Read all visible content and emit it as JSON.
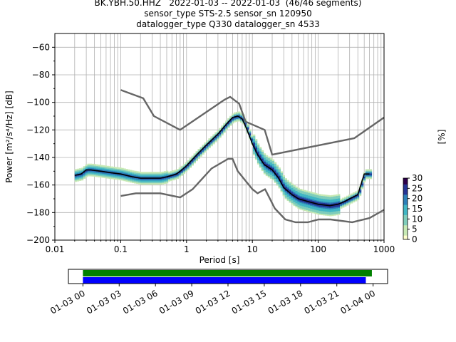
{
  "header": {
    "line1": "BK.YBH.50.HHZ   2022-01-03 -- 2022-01-03  (46/46 segments)",
    "line2": "sensor_type STS-2.5 sensor_sn 120950",
    "line3": "datalogger_type Q330 datalogger_sn 4533"
  },
  "chart_data": [
    {
      "type": "heatmap",
      "title": "",
      "xlabel": "Period [s]",
      "ylabel": "Power [m²/s⁴/Hz] [dB]",
      "xscale": "log",
      "xlim": [
        0.01,
        1000
      ],
      "ylim": [
        -200,
        -50
      ],
      "x_ticks": [
        0.01,
        0.1,
        1,
        10,
        100,
        1000
      ],
      "x_tick_labels": [
        "0.01",
        "0.1",
        "1",
        "10",
        "100",
        "1000"
      ],
      "y_ticks": [
        -200,
        -180,
        -160,
        -140,
        -120,
        -100,
        -80,
        -60
      ],
      "y_tick_labels": [
        "−200",
        "−180",
        "−160",
        "−140",
        "−120",
        "−100",
        "−80",
        "−60"
      ],
      "grid": true,
      "colorbar": {
        "label": "[%]",
        "range": [
          0,
          30
        ],
        "ticks": [
          0,
          5,
          10,
          15,
          20,
          25,
          30
        ],
        "tick_labels": [
          "0",
          "5",
          "10",
          "15",
          "20",
          "25",
          "30"
        ],
        "colors": [
          "#ffffcc",
          "#c7e9b4",
          "#7fcdbb",
          "#41b6c4",
          "#2c7fb8",
          "#253494",
          "#2d004b"
        ]
      },
      "series": [
        {
          "role": "mode",
          "color": "#000000",
          "x": [
            0.02,
            0.025,
            0.03,
            0.035,
            0.05,
            0.07,
            0.1,
            0.15,
            0.2,
            0.3,
            0.4,
            0.5,
            0.6,
            0.7,
            0.8,
            1,
            1.5,
            2,
            3,
            4,
            5,
            6,
            7,
            8,
            10,
            12,
            15,
            20,
            25,
            30,
            40,
            50,
            70,
            100,
            150,
            200,
            250,
            300,
            400,
            500,
            600
          ],
          "y": [
            -153,
            -152,
            -149,
            -149,
            -150,
            -151,
            -152,
            -154,
            -155,
            -155,
            -155,
            -154,
            -153,
            -152,
            -150,
            -146,
            -137,
            -131,
            -123,
            -116,
            -111,
            -110,
            -112,
            -118,
            -130,
            -138,
            -145,
            -149,
            -155,
            -162,
            -167,
            -170,
            -172,
            -174,
            -175,
            -174,
            -172,
            -170,
            -167,
            -152,
            -152
          ]
        },
        {
          "role": "high-noise-model",
          "color": "#666666",
          "x": [
            0.1,
            0.22,
            0.32,
            0.8,
            3.8,
            4.6,
            6.3,
            7.9,
            15.4,
            20,
            354.8,
            1000
          ],
          "y": [
            -91,
            -97,
            -110,
            -120,
            -98,
            -96,
            -101,
            -114,
            -120,
            -138,
            -126,
            -111
          ]
        },
        {
          "role": "low-noise-model",
          "color": "#666666",
          "x": [
            0.1,
            0.17,
            0.4,
            0.8,
            1.24,
            2.4,
            4.3,
            5,
            6,
            10,
            12,
            15.6,
            21.9,
            31.6,
            45,
            70,
            101,
            154,
            328,
            600,
            1000
          ],
          "y": [
            -168,
            -166,
            -166,
            -169,
            -163,
            -148,
            -141,
            -141,
            -150,
            -163,
            -166,
            -163,
            -177,
            -185,
            -187,
            -187,
            -185,
            -185,
            -187,
            -184,
            -178
          ]
        }
      ]
    },
    {
      "type": "bar",
      "title": "",
      "x_tick_labels": [
        "01-03 00",
        "01-03 03",
        "01-03 06",
        "01-03 09",
        "01-03 12",
        "01-03 15",
        "01-03 18",
        "01-03 21",
        "01-04 00"
      ],
      "x_ticks_hours": [
        0,
        3,
        6,
        9,
        12,
        15,
        18,
        21,
        24
      ],
      "xlim_hours": [
        -1.2,
        25.2
      ],
      "series": [
        {
          "role": "data-available",
          "color": "#008000",
          "start_hours": 0,
          "end_hours": 23.9
        },
        {
          "role": "psd-segments-used",
          "color": "#0000ff",
          "start_hours": 0,
          "end_hours": 23.4
        }
      ]
    }
  ]
}
